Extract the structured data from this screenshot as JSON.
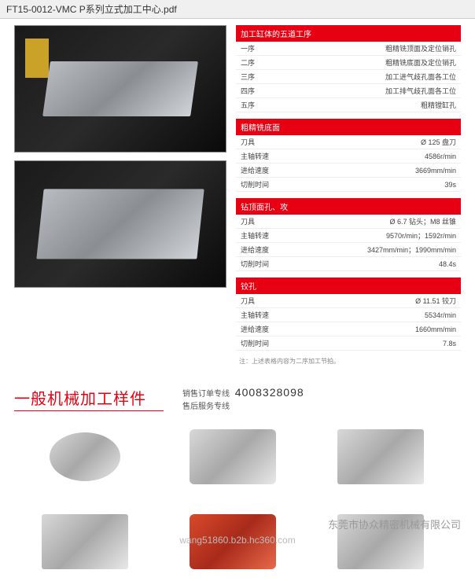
{
  "titleBar": "FT15-0012-VMC P系列立式加工中心.pdf",
  "tables": [
    {
      "header": "加工缸体的五道工序",
      "rows": [
        [
          "一序",
          "粗精铣顶面及定位销孔"
        ],
        [
          "二序",
          "粗精铣底面及定位销孔"
        ],
        [
          "三序",
          "加工进气歧孔面各工位"
        ],
        [
          "四序",
          "加工排气歧孔面各工位"
        ],
        [
          "五序",
          "粗精镗缸孔"
        ]
      ]
    },
    {
      "header": "粗精铣底面",
      "rows": [
        [
          "刀具",
          "Ø 125 盘刀"
        ],
        [
          "主轴转速",
          "4586r/min"
        ],
        [
          "进给速度",
          "3669mm/min"
        ],
        [
          "切削时间",
          "39s"
        ]
      ]
    },
    {
      "header": "钻顶面孔、攻",
      "rows": [
        [
          "刀具",
          "Ø 6.7 钻头；M8 丝锥"
        ],
        [
          "主轴转速",
          "9570r/min；1592r/min"
        ],
        [
          "进给速度",
          "3427mm/min；1990mm/min"
        ],
        [
          "切削时间",
          "48.4s"
        ]
      ]
    },
    {
      "header": "铰孔",
      "rows": [
        [
          "刀具",
          "Ø 11.51 铰刀"
        ],
        [
          "主轴转速",
          "5534r/min"
        ],
        [
          "进给速度",
          "1660mm/min"
        ],
        [
          "切削时间",
          "7.8s"
        ]
      ]
    }
  ],
  "note": "注：上述表格内容为二序加工节拍。",
  "sectionTitle": "一般机械加工样件",
  "contact": {
    "line1Label": "销售订单专线",
    "line2Label": "售后服务专线",
    "phone": "4008328098"
  },
  "footerCompany": "东莞市协众精密机械有限公司",
  "footerUrl": "wang51860.b2b.hc360.com",
  "colors": {
    "brandRed": "#e60012"
  }
}
